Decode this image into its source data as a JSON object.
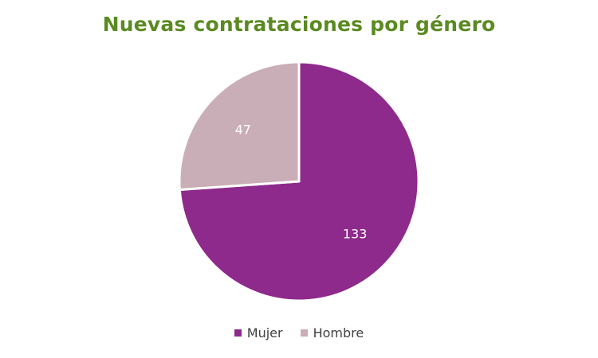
{
  "chart_data": {
    "type": "pie",
    "title": "Nuevas contrataciones por género",
    "categories": [
      "Mujer",
      "Hombre"
    ],
    "values": [
      133,
      47
    ],
    "colors": [
      "#8e2a8c",
      "#c9adb7"
    ],
    "data_labels": [
      "133",
      "47"
    ],
    "legend_position": "bottom"
  }
}
